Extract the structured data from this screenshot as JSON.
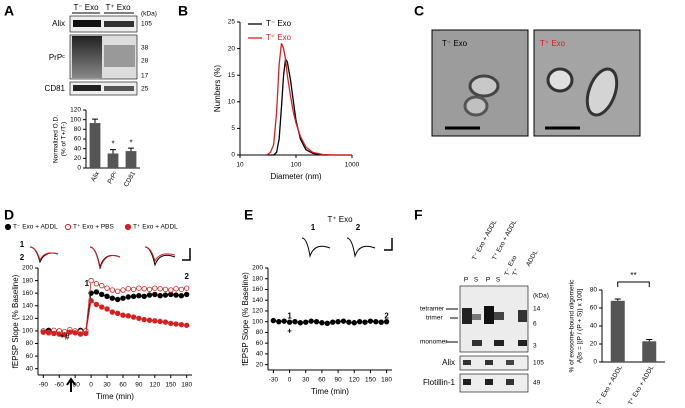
{
  "figure": {
    "panel_labels": [
      "A",
      "B",
      "C",
      "D",
      "E",
      "F"
    ],
    "blot_a": {
      "groups": [
        "T⁻ Exo",
        "T⁺ Exo"
      ],
      "unit": "(kDa)",
      "rows": [
        "Alix",
        "PrPᶜ",
        "CD81"
      ],
      "markers": [
        "105",
        "38",
        "28",
        "17",
        "25"
      ]
    },
    "micrographs": [
      "T⁻ Exo",
      "T⁺ Exo"
    ],
    "blot_f": {
      "groups": [
        "T⁻ Exo + ADDL",
        "T⁺ Exo + ADDL",
        "Exo",
        "ADDL"
      ],
      "lanes": [
        "P",
        "S",
        "P",
        "S",
        "T⁻",
        "T⁺"
      ],
      "bands": [
        "tetramer",
        "trimer",
        "monomer"
      ],
      "unit": "(kDa)",
      "markers": [
        "14",
        "6",
        "3",
        "105",
        "49"
      ],
      "rows": [
        "Alix",
        "Flotillin-1"
      ]
    }
  },
  "chart_data": [
    {
      "type": "bar",
      "ylabel": [
        "Normalized O.D.",
        "(% of T+/T-)"
      ],
      "categories": [
        "Alix",
        "PrPᶜ",
        "CD81"
      ],
      "values": [
        93,
        30,
        35
      ],
      "errors": [
        8,
        8,
        6
      ],
      "significance": [
        null,
        "*",
        "*"
      ],
      "color": "#555555",
      "ylim": [
        0,
        120
      ],
      "yticks": [
        0,
        20,
        40,
        60,
        80,
        100,
        120
      ]
    },
    {
      "type": "line",
      "xscale": "log",
      "xlabel": "Diameter (nm)",
      "ylabel": [
        "Numbers (%)"
      ],
      "legend": "upper left",
      "x": [
        30,
        35,
        40,
        45,
        50,
        55,
        60,
        65,
        70,
        80,
        90,
        100,
        120,
        150,
        200,
        300,
        500,
        1000
      ],
      "series": [
        {
          "name": "T⁻ Exo",
          "color": "#000000",
          "values": [
            0,
            0,
            0,
            0.5,
            3,
            9,
            15,
            18,
            17.5,
            14,
            10,
            6.5,
            3,
            1,
            0.3,
            0,
            0,
            0
          ]
        },
        {
          "name": "T⁺ Exo",
          "color": "#d62020",
          "values": [
            0,
            0.5,
            2,
            8,
            17,
            21,
            20,
            18,
            15,
            11,
            8,
            6,
            3.5,
            1.5,
            0.5,
            0.1,
            0,
            0
          ]
        }
      ],
      "xlim": [
        10,
        1000
      ],
      "xticks": [
        10,
        100,
        1000
      ],
      "ylim": [
        0,
        25
      ],
      "yticks": [
        0,
        5,
        10,
        15,
        20,
        25
      ]
    },
    {
      "type": "line",
      "xlabel": "Time (min)",
      "ylabel": [
        "fEPSP Slope (% Baseline)"
      ],
      "legend": "top",
      "annotations": [
        "1",
        "2",
        "1",
        "2",
        "*",
        "#"
      ],
      "x": [
        -90,
        -80,
        -70,
        -60,
        -50,
        -40,
        -30,
        -20,
        -10,
        0,
        10,
        20,
        30,
        40,
        50,
        60,
        70,
        80,
        90,
        100,
        110,
        120,
        130,
        140,
        150,
        160,
        170,
        180
      ],
      "series": [
        {
          "name": "T⁻ Exo + ADDL",
          "color": "#000000",
          "marker": "filled",
          "values": [
            100,
            101,
            99,
            100,
            98,
            100,
            99,
            101,
            100,
            160,
            162,
            158,
            155,
            152,
            150,
            152,
            154,
            155,
            156,
            155,
            157,
            158,
            156,
            157,
            158,
            157,
            156,
            158
          ]
        },
        {
          "name": "T⁺ Exo + PBS",
          "color": "#d62020",
          "marker": "open",
          "values": [
            100,
            98,
            101,
            100,
            99,
            102,
            100,
            99,
            100,
            180,
            175,
            172,
            168,
            165,
            163,
            165,
            167,
            166,
            168,
            167,
            166,
            168,
            167,
            166,
            165,
            167,
            166,
            168
          ]
        },
        {
          "name": "T⁺ Exo + ADDL",
          "color": "#d62020",
          "marker": "filled",
          "values": [
            98,
            97,
            96,
            95,
            94,
            98,
            97,
            95,
            96,
            148,
            142,
            138,
            135,
            130,
            128,
            125,
            124,
            122,
            120,
            118,
            117,
            116,
            115,
            114,
            112,
            111,
            110,
            109
          ]
        }
      ],
      "xlim": [
        -100,
        190
      ],
      "xticks": [
        -90,
        -60,
        -30,
        0,
        30,
        60,
        90,
        120,
        150,
        180
      ],
      "ylim": [
        30,
        200
      ],
      "yticks": [
        40,
        60,
        80,
        100,
        120,
        140,
        160,
        180,
        200
      ]
    },
    {
      "type": "line",
      "title": "T⁺ Exo",
      "xlabel": "Time (min)",
      "ylabel": [
        "fEPSP Slope (% Baseline)"
      ],
      "annotations": [
        "1",
        "2",
        "1",
        "2",
        "+"
      ],
      "x": [
        -30,
        -20,
        -10,
        0,
        10,
        20,
        30,
        40,
        50,
        60,
        70,
        80,
        90,
        100,
        110,
        120,
        130,
        140,
        150,
        160,
        170,
        180
      ],
      "series": [
        {
          "name": "T⁺ Exo",
          "color": "#000000",
          "marker": "filled",
          "values": [
            102,
            100,
            101,
            99,
            100,
            98,
            99,
            101,
            100,
            98,
            97,
            99,
            100,
            101,
            99,
            98,
            100,
            99,
            101,
            100,
            99,
            100
          ]
        }
      ],
      "xlim": [
        -40,
        190
      ],
      "xticks": [
        -30,
        0,
        30,
        60,
        90,
        120,
        150,
        180
      ],
      "ylim": [
        10,
        200
      ],
      "yticks": [
        20,
        40,
        60,
        80,
        100,
        120,
        140,
        160,
        180,
        200
      ]
    },
    {
      "type": "bar",
      "ylabel": [
        "% of exosome-bound oligomeric",
        "Aβs = [(P / (P + S)) x 100]"
      ],
      "categories": [
        "T⁻ Exo + ADDL",
        "T⁺ Exo + ADDL"
      ],
      "values": [
        68,
        23
      ],
      "errors": [
        2,
        2
      ],
      "bracket": "**",
      "color": "#555555",
      "ylim": [
        0,
        80
      ],
      "yticks": [
        0,
        20,
        40,
        60,
        80
      ]
    }
  ]
}
